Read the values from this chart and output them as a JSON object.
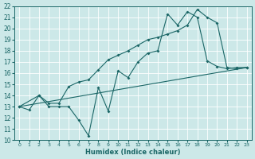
{
  "xlabel": "Humidex (Indice chaleur)",
  "xlim": [
    -0.5,
    23.5
  ],
  "ylim": [
    10,
    22
  ],
  "xticks": [
    0,
    1,
    2,
    3,
    4,
    5,
    6,
    7,
    8,
    9,
    10,
    11,
    12,
    13,
    14,
    15,
    16,
    17,
    18,
    19,
    20,
    21,
    22,
    23
  ],
  "yticks": [
    10,
    11,
    12,
    13,
    14,
    15,
    16,
    17,
    18,
    19,
    20,
    21,
    22
  ],
  "bg_color": "#cce8e8",
  "line_color": "#1a6666",
  "grid_color": "#ffffff",
  "line1_x": [
    0,
    1,
    2,
    3,
    4,
    5,
    6,
    7,
    8,
    9,
    10,
    11,
    12,
    13,
    14,
    15,
    16,
    17,
    18,
    19,
    20,
    21,
    22,
    23
  ],
  "line1_y": [
    13,
    12.7,
    14,
    13,
    13,
    13,
    11.8,
    10.4,
    14.7,
    12.6,
    16.2,
    15.6,
    17.0,
    17.8,
    18.0,
    21.3,
    20.3,
    21.5,
    21.0,
    17.1,
    16.6,
    16.4,
    16.5,
    16.5
  ],
  "line2_x": [
    0,
    2,
    3,
    4,
    5,
    6,
    7,
    8,
    9,
    10,
    11,
    12,
    13,
    14,
    15,
    16,
    17,
    18,
    19,
    20,
    21,
    22,
    23
  ],
  "line2_y": [
    13,
    14,
    13.3,
    13.3,
    14.8,
    15.2,
    15.4,
    16.3,
    17.2,
    17.6,
    18.0,
    18.5,
    19.0,
    19.2,
    19.5,
    19.8,
    20.3,
    21.7,
    21.0,
    20.5,
    16.5,
    16.4,
    16.5
  ],
  "line3_x": [
    0,
    23
  ],
  "line3_y": [
    13,
    16.5
  ]
}
